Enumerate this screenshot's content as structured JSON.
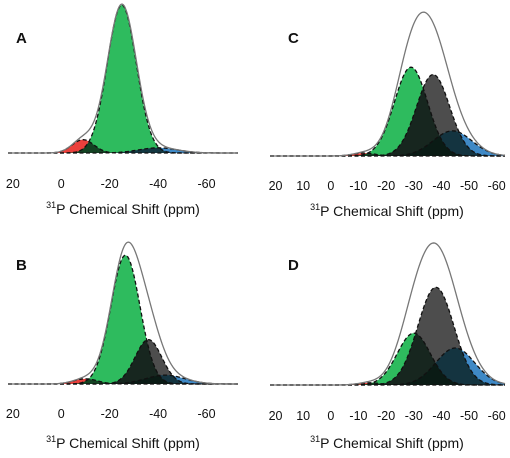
{
  "chart_data": [
    {
      "panel": "A",
      "type": "area",
      "xlabel_sup": "31",
      "xlabel": "P Chemical Shift (ppm)",
      "x_ticks": [
        20,
        0,
        -20,
        -40,
        -60
      ],
      "xlim": [
        22,
        -73
      ],
      "x_reversed": true,
      "envelope": {
        "color": "#777777",
        "components": [
          0,
          1,
          2
        ]
      },
      "series": [
        {
          "color": "#e8302b",
          "center": -9,
          "height": 0.09,
          "width": 4.5
        },
        {
          "color": "#1cb550",
          "center": -25,
          "height": 1.0,
          "width": 6
        },
        {
          "color": "#2f7fc1",
          "center": -40,
          "height": 0.035,
          "width": 8
        }
      ]
    },
    {
      "panel": "B",
      "type": "area",
      "xlabel_sup": "31",
      "xlabel": "P Chemical Shift (ppm)",
      "x_ticks": [
        20,
        0,
        -20,
        -40,
        -60
      ],
      "xlim": [
        22,
        -73
      ],
      "x_reversed": true,
      "envelope": {
        "color": "#777777",
        "components": [
          0,
          1,
          2,
          3
        ]
      },
      "series": [
        {
          "color": "#e8302b",
          "center": -10,
          "height": 0.035,
          "width": 5
        },
        {
          "color": "#1cb550",
          "center": -26.5,
          "height": 0.87,
          "width": 6
        },
        {
          "color": "#3e3e3e",
          "center": -36,
          "height": 0.3,
          "width": 5.5
        },
        {
          "color": "#2f7fc1",
          "center": -43,
          "height": 0.06,
          "width": 8
        }
      ]
    },
    {
      "panel": "C",
      "type": "area",
      "xlabel_sup": "31",
      "xlabel": "P Chemical Shift (ppm)",
      "x_ticks": [
        20,
        10,
        0,
        -10,
        -20,
        -30,
        -40,
        -50,
        -60
      ],
      "xlim": [
        22,
        -63
      ],
      "x_reversed": true,
      "envelope": {
        "color": "#777777",
        "components": [
          0,
          1,
          2,
          3
        ]
      },
      "series": [
        {
          "color": "#e8302b",
          "center": -12,
          "height": 0.02,
          "width": 4
        },
        {
          "color": "#1cb550",
          "center": -29,
          "height": 0.6,
          "width": 6
        },
        {
          "color": "#3e3e3e",
          "center": -37,
          "height": 0.55,
          "width": 6
        },
        {
          "color": "#2f7fc1",
          "center": -44,
          "height": 0.17,
          "width": 7
        }
      ]
    },
    {
      "panel": "D",
      "type": "area",
      "xlabel_sup": "31",
      "xlabel": "P Chemical Shift (ppm)",
      "x_ticks": [
        20,
        10,
        0,
        -10,
        -20,
        -30,
        -40,
        -50,
        -60
      ],
      "xlim": [
        22,
        -63
      ],
      "x_reversed": true,
      "envelope": {
        "color": "#777777",
        "components": [
          0,
          1,
          2,
          3
        ]
      },
      "series": [
        {
          "color": "#e8302b",
          "center": -14,
          "height": 0.015,
          "width": 4
        },
        {
          "color": "#1cb550",
          "center": -30,
          "height": 0.35,
          "width": 6
        },
        {
          "color": "#3e3e3e",
          "center": -38,
          "height": 0.66,
          "width": 6.5
        },
        {
          "color": "#2f7fc1",
          "center": -45,
          "height": 0.25,
          "width": 7
        }
      ]
    }
  ]
}
